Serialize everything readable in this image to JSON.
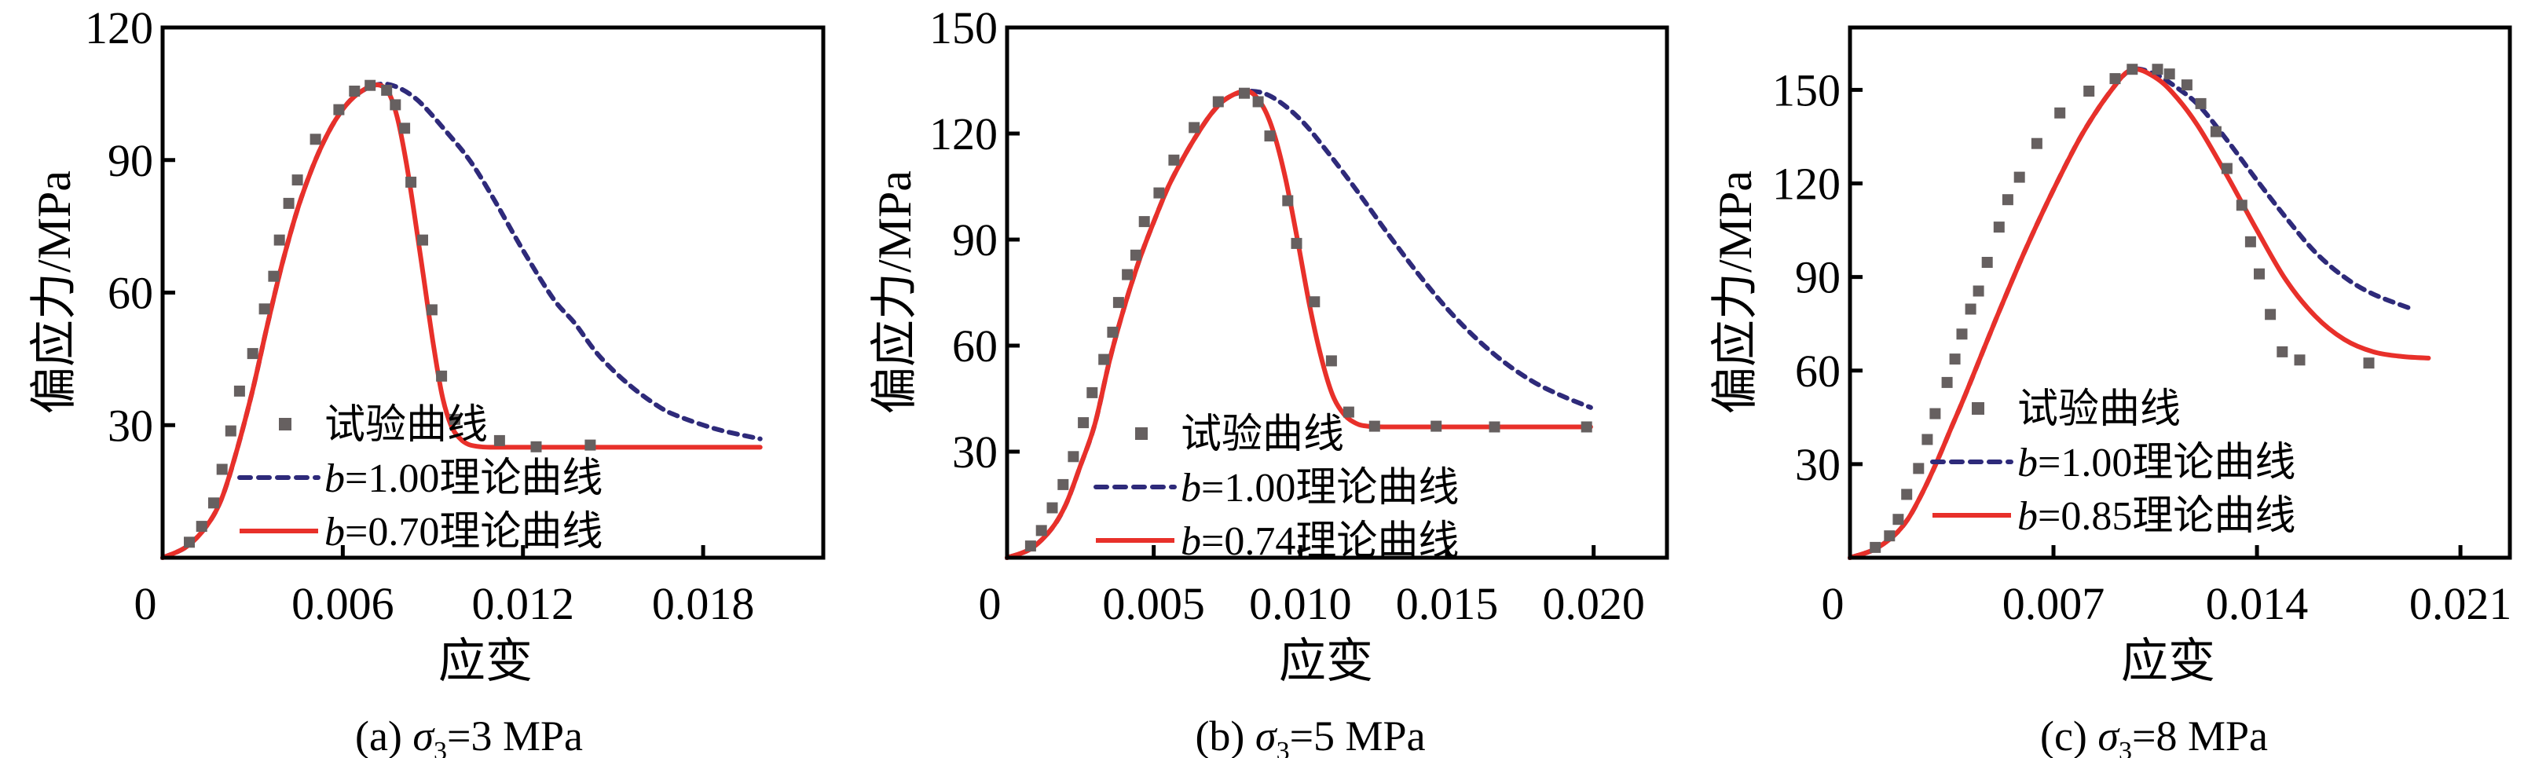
{
  "figure": {
    "panels_count": 3
  },
  "colors": {
    "experimental": "#666060",
    "b100": "#2e2a7a",
    "bfit": "#e8302a",
    "axis": "#000000"
  },
  "chart_data": [
    {
      "type": "scatter",
      "panel": "a",
      "caption": {
        "prefix": "(a) ",
        "symbol": "σ",
        "subscript": "3",
        "suffix": "=3 MPa"
      },
      "xlabel": "应变",
      "ylabel": "偏应力/MPa",
      "xlim": [
        0,
        0.022
      ],
      "ylim": [
        0,
        120
      ],
      "xticks": [
        0,
        0.006,
        0.012,
        0.018
      ],
      "xtick_labels": [
        "0",
        "0.006",
        "0.012",
        "0.018"
      ],
      "yticks": [
        30,
        60,
        90,
        120
      ],
      "ytick_labels": [
        "30",
        "60",
        "90",
        "120"
      ],
      "grid": false,
      "legend_position": "bottom-center",
      "legend": [
        {
          "name": "试验曲线",
          "style": "square-marker",
          "color_key": "experimental"
        },
        {
          "name_prefix": "b",
          "name": "=1.00理论曲线",
          "style": "dashed",
          "color_key": "b100"
        },
        {
          "name_prefix": "b",
          "name": "=0.70理论曲线",
          "style": "solid",
          "color_key": "bfit"
        }
      ],
      "series": [
        {
          "name": "试验曲线",
          "kind": "scatter",
          "x": [
            0.00089,
            0.0013,
            0.0017,
            0.00198,
            0.00227,
            0.00256,
            0.003,
            0.00339,
            0.0037,
            0.00389,
            0.0042,
            0.00449,
            0.00509,
            0.00587,
            0.00639,
            0.00691,
            0.00746,
            0.00775,
            0.00806,
            0.00827,
            0.00866,
            0.00897,
            0.00929,
            0.00973,
            0.01122,
            0.01244,
            0.01424
          ],
          "y": [
            3.5,
            7.1,
            12.4,
            20.0,
            28.7,
            37.7,
            46.2,
            56.3,
            63.7,
            71.9,
            80.2,
            85.5,
            94.7,
            101.4,
            105.6,
            106.9,
            105.8,
            102.5,
            97.2,
            85.0,
            71.9,
            56.1,
            41.1,
            31.3,
            26.5,
            25.1,
            25.5
          ]
        },
        {
          "name": "b=1.00理论曲线",
          "kind": "line",
          "x": [
            0,
            0.0008,
            0.0015,
            0.002,
            0.0025,
            0.003,
            0.0035,
            0.004,
            0.0045,
            0.005,
            0.0055,
            0.006,
            0.0065,
            0.0071,
            0.0077,
            0.0085,
            0.0095,
            0.01025,
            0.011,
            0.012,
            0.013,
            0.01372,
            0.0145,
            0.01547,
            0.0165,
            0.01722,
            0.0185,
            0.0199
          ],
          "y": [
            0,
            2.5,
            7.5,
            14,
            25,
            38,
            53,
            67,
            79,
            88.5,
            96,
            101.5,
            105,
            107,
            106.8,
            103.5,
            96,
            89.7,
            81.5,
            69.6,
            58.7,
            53.1,
            46,
            39.5,
            34.3,
            31.9,
            29,
            26.9
          ]
        },
        {
          "name": "b=0.70理论曲线",
          "kind": "line",
          "x": [
            0,
            0.0008,
            0.0015,
            0.002,
            0.0025,
            0.003,
            0.0035,
            0.004,
            0.0045,
            0.005,
            0.0055,
            0.006,
            0.0065,
            0.0071,
            0.0075,
            0.0078,
            0.0081,
            0.0084,
            0.0087,
            0.009,
            0.0093,
            0.0096,
            0.0099,
            0.0102,
            0.0106,
            0.011,
            0.012,
            0.015,
            0.0199
          ],
          "y": [
            0,
            2.5,
            7.5,
            14,
            25,
            38,
            53,
            67,
            79,
            88.5,
            96,
            101.5,
            105,
            107,
            105.5,
            100,
            90,
            77,
            63,
            49,
            37,
            30,
            27,
            25.6,
            25.1,
            25,
            25,
            25,
            25
          ]
        }
      ]
    },
    {
      "type": "scatter",
      "panel": "b",
      "caption": {
        "prefix": "(b) ",
        "symbol": "σ",
        "subscript": "3",
        "suffix": "=5 MPa"
      },
      "xlabel": "应变",
      "ylabel": "偏应力/MPa",
      "xlim": [
        0,
        0.0225
      ],
      "ylim": [
        0,
        150
      ],
      "xticks": [
        0,
        0.005,
        0.01,
        0.015,
        0.02
      ],
      "xtick_labels": [
        "0",
        "0.005",
        "0.010",
        "0.015",
        "0.020"
      ],
      "yticks": [
        30,
        60,
        90,
        120,
        150
      ],
      "ytick_labels": [
        "30",
        "60",
        "90",
        "120",
        "150"
      ],
      "grid": false,
      "legend_position": "bottom-center",
      "legend": [
        {
          "name": "试验曲线",
          "style": "square-marker",
          "color_key": "experimental"
        },
        {
          "name_prefix": "b",
          "name": "=1.00理论曲线",
          "style": "dashed",
          "color_key": "b100"
        },
        {
          "name_prefix": "b",
          "name": "=0.74理论曲线",
          "style": "solid",
          "color_key": "bfit"
        }
      ],
      "series": [
        {
          "name": "试验曲线",
          "kind": "scatter",
          "x": [
            0.0008,
            0.00117,
            0.00154,
            0.00191,
            0.00226,
            0.0026,
            0.0029,
            0.0033,
            0.0036,
            0.0038,
            0.0041,
            0.00439,
            0.00468,
            0.00518,
            0.00569,
            0.00638,
            0.0072,
            0.00809,
            0.00856,
            0.00896,
            0.00957,
            0.00987,
            0.01048,
            0.01106,
            0.01165,
            0.01253,
            0.01463,
            0.01662,
            0.01976
          ],
          "y": [
            3.3,
            7.7,
            14.1,
            20.7,
            28.6,
            38.2,
            46.7,
            56.1,
            63.8,
            72.2,
            80.1,
            85.6,
            95.1,
            103.2,
            112.5,
            121.7,
            129.0,
            131.4,
            129.0,
            119.3,
            101.0,
            88.9,
            72.4,
            55.7,
            41.2,
            37.2,
            37.2,
            37.0,
            37.0
          ]
        },
        {
          "name": "b=1.00理论曲线",
          "kind": "line",
          "x": [
            0,
            0.0008,
            0.0015,
            0.002,
            0.0025,
            0.003,
            0.0035,
            0.004,
            0.0045,
            0.005,
            0.0055,
            0.006,
            0.0065,
            0.007,
            0.0075,
            0.0082,
            0.009,
            0.01,
            0.011,
            0.012,
            0.013,
            0.014,
            0.015,
            0.016,
            0.017,
            0.018,
            0.019,
            0.0199
          ],
          "y": [
            0,
            2.5,
            8,
            15,
            26,
            38,
            56,
            71,
            84,
            95,
            105,
            113,
            120,
            126,
            130,
            132,
            130.5,
            124,
            114,
            103,
            91.5,
            80.5,
            70.5,
            62,
            55,
            49.5,
            45.5,
            42.5
          ]
        },
        {
          "name": "b=0.74理论曲线",
          "kind": "line",
          "x": [
            0,
            0.0008,
            0.0015,
            0.002,
            0.0025,
            0.003,
            0.0035,
            0.004,
            0.0045,
            0.005,
            0.0055,
            0.006,
            0.0065,
            0.007,
            0.0075,
            0.0082,
            0.0087,
            0.0091,
            0.0095,
            0.0099,
            0.0103,
            0.0107,
            0.0111,
            0.0115,
            0.0119,
            0.0123,
            0.013,
            0.015,
            0.0199
          ],
          "y": [
            0,
            2.5,
            8,
            15,
            26,
            38,
            56,
            71,
            84,
            95,
            105,
            113,
            120,
            126,
            130,
            132,
            128,
            120,
            107,
            90,
            72,
            57,
            46,
            40.5,
            38,
            37.2,
            37,
            37,
            37
          ]
        }
      ]
    },
    {
      "type": "scatter",
      "panel": "c",
      "caption": {
        "prefix": "(c) ",
        "symbol": "σ",
        "subscript": "3",
        "suffix": "=8 MPa"
      },
      "xlabel": "应变",
      "ylabel": "偏应力/MPa",
      "xlim": [
        0,
        0.0227
      ],
      "ylim": [
        0,
        170
      ],
      "xticks": [
        0,
        0.007,
        0.014,
        0.021
      ],
      "xtick_labels": [
        "0",
        "0.007",
        "0.014",
        "0.021"
      ],
      "yticks": [
        30,
        60,
        90,
        120,
        150
      ],
      "ytick_labels": [
        "30",
        "60",
        "90",
        "120",
        "150"
      ],
      "grid": false,
      "legend_position": "bottom-center",
      "legend": [
        {
          "name": "试验曲线",
          "style": "square-marker",
          "color_key": "experimental"
        },
        {
          "name_prefix": "b",
          "name": "=1.00理论曲线",
          "style": "dashed",
          "color_key": "b100"
        },
        {
          "name_prefix": "b",
          "name": "=0.85理论曲线",
          "style": "solid",
          "color_key": "bfit"
        }
      ],
      "series": [
        {
          "name": "试验曲线",
          "kind": "scatter",
          "x": [
            0.00087,
            0.00136,
            0.00166,
            0.00195,
            0.00236,
            0.00266,
            0.00293,
            0.00334,
            0.00361,
            0.00385,
            0.00415,
            0.00442,
            0.00472,
            0.00513,
            0.00543,
            0.00583,
            0.00643,
            0.00722,
            0.00822,
            0.00912,
            0.00971,
            0.01058,
            0.01099,
            0.01159,
            0.01207,
            0.01259,
            0.01297,
            0.01348,
            0.01378,
            0.01408,
            0.01446,
            0.01487,
            0.01547,
            0.01785
          ],
          "y": [
            3.3,
            7.0,
            12.3,
            20.3,
            28.6,
            37.9,
            46.2,
            56.2,
            63.7,
            71.7,
            79.7,
            85.5,
            94.7,
            106.0,
            114.8,
            122.0,
            132.8,
            142.6,
            149.6,
            153.6,
            156.6,
            156.6,
            155.1,
            151.6,
            145.6,
            136.6,
            124.8,
            113.0,
            101.3,
            91.0,
            78.0,
            66.0,
            63.4,
            62.4
          ]
        },
        {
          "name": "b=1.00理论曲线",
          "kind": "line",
          "x": [
            0,
            0.0008,
            0.0015,
            0.002,
            0.0025,
            0.003,
            0.0035,
            0.004,
            0.005,
            0.006,
            0.007,
            0.008,
            0.009,
            0.0097,
            0.0105,
            0.0112,
            0.012,
            0.013,
            0.014,
            0.015,
            0.016,
            0.017,
            0.018,
            0.0194
          ],
          "y": [
            0,
            2.5,
            7,
            12.5,
            21,
            31,
            42,
            53,
            76,
            98,
            118,
            136,
            150,
            156.5,
            155,
            151,
            145,
            133.5,
            121,
            109,
            98,
            90,
            84.5,
            79.5
          ]
        },
        {
          "name": "b=0.85理论曲线",
          "kind": "line",
          "x": [
            0,
            0.0008,
            0.0015,
            0.002,
            0.0025,
            0.003,
            0.0035,
            0.004,
            0.005,
            0.006,
            0.007,
            0.008,
            0.009,
            0.0097,
            0.0105,
            0.0112,
            0.012,
            0.013,
            0.014,
            0.015,
            0.016,
            0.017,
            0.018,
            0.019,
            0.0199
          ],
          "y": [
            0,
            2.5,
            7,
            12.5,
            21,
            31,
            42,
            53,
            76,
            98,
            118,
            136,
            150,
            156.5,
            154,
            148,
            138,
            122,
            105,
            89,
            77.5,
            70,
            66,
            64.5,
            64
          ]
        }
      ]
    }
  ]
}
